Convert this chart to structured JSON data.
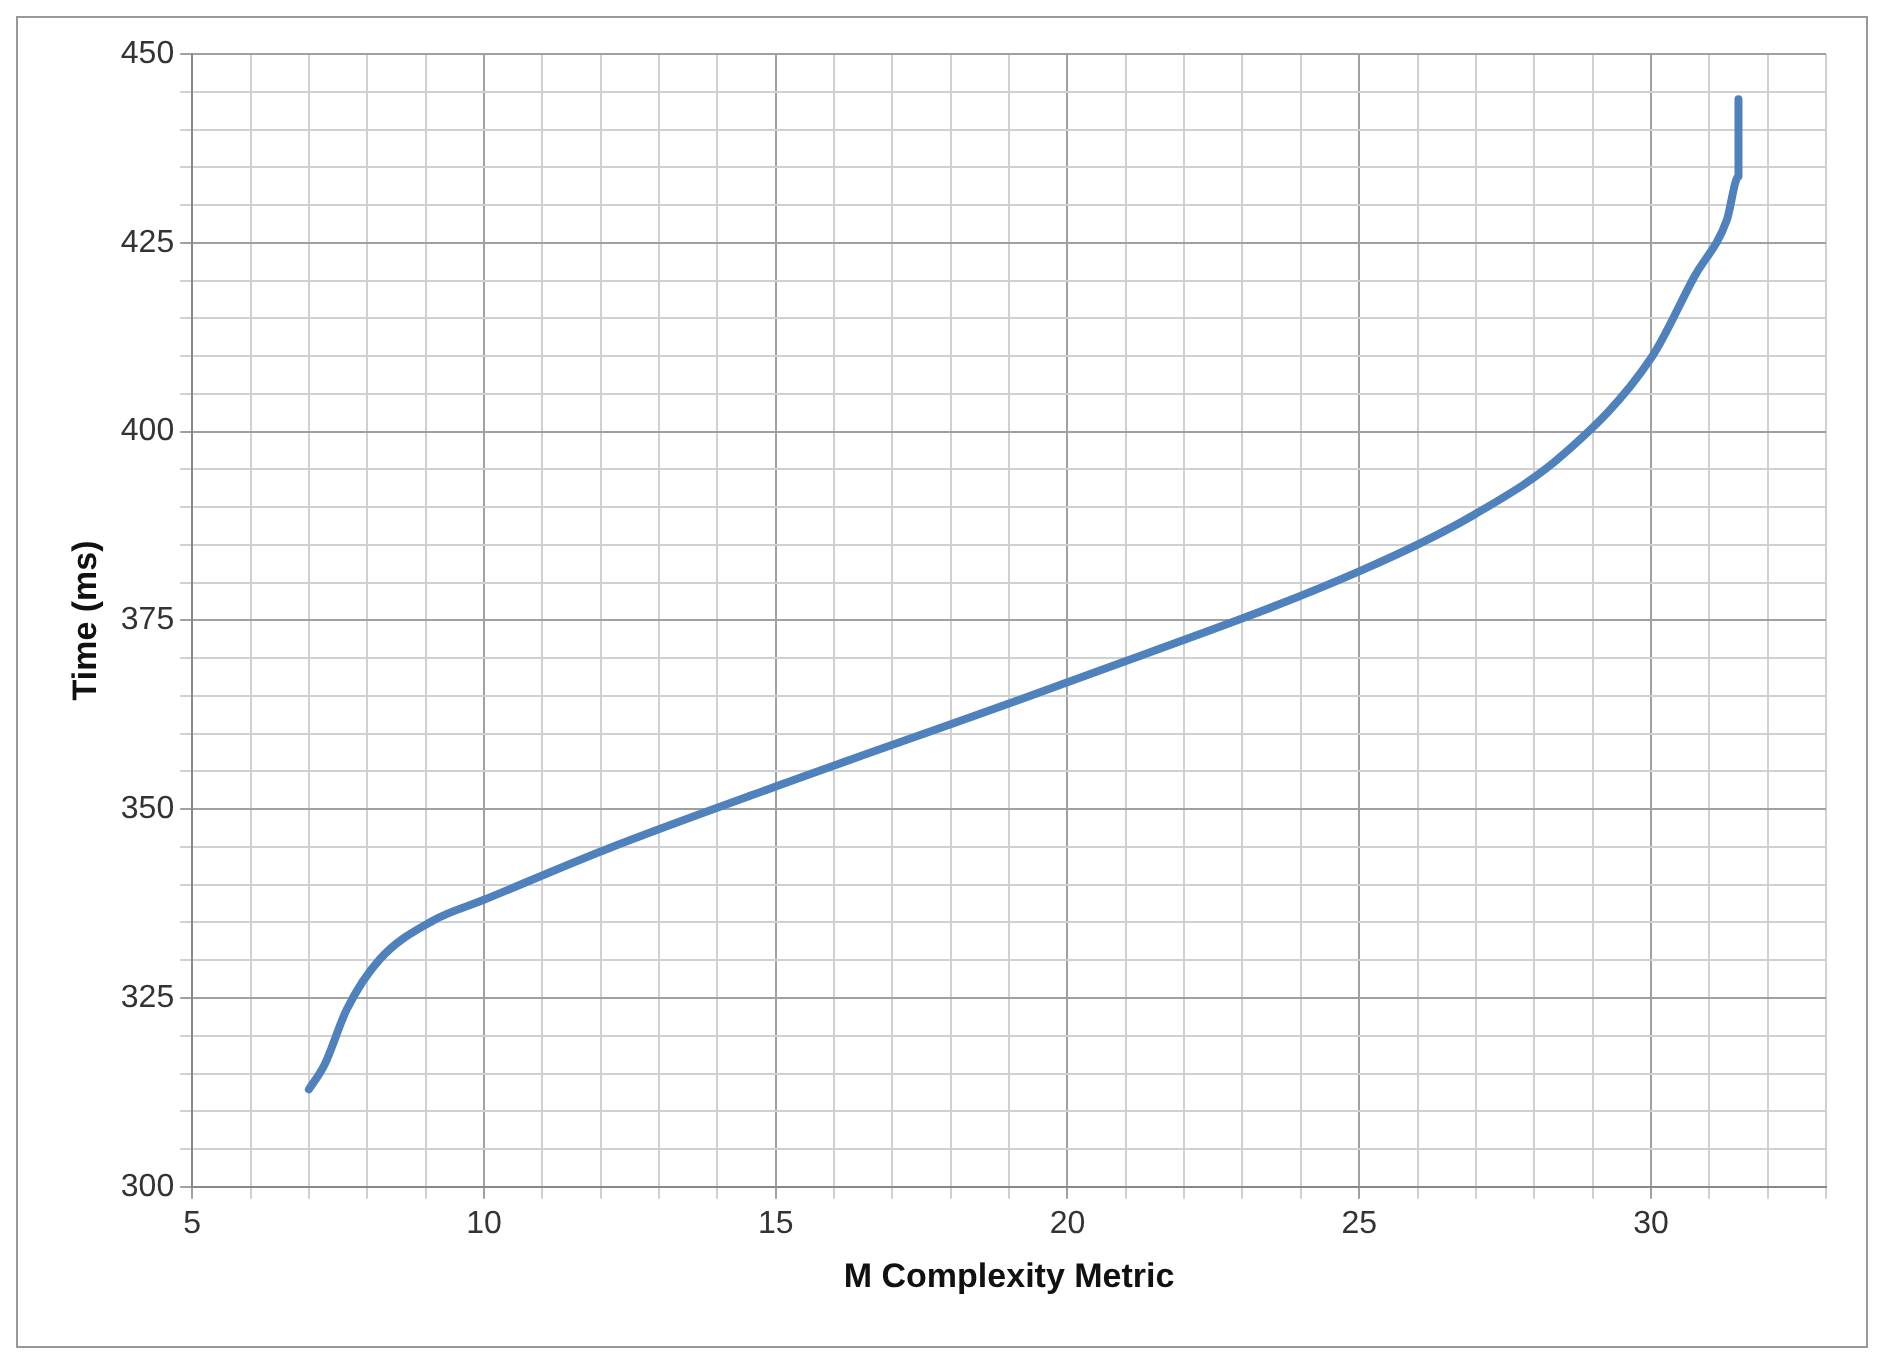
{
  "chart_data": {
    "type": "line",
    "xlabel": "M Complexity Metric",
    "ylabel": "Time (ms)",
    "x": [
      7.0,
      7.27,
      7.65,
      8.2,
      9.14,
      10,
      12.1,
      15,
      20,
      25,
      26.97,
      28.5,
      30,
      30.75,
      31.3,
      31.5,
      31.5
    ],
    "series": [
      {
        "color": "#4f81bd",
        "values": [
          312.9,
          316.2,
          323.5,
          330,
          335.3,
          338,
          344.7,
          353,
          366.8,
          381.5,
          389,
          397,
          409.7,
          420.6,
          428,
          433.8,
          444
        ]
      }
    ],
    "xlim": [
      5,
      33
    ],
    "ylim": [
      300,
      450
    ],
    "xticks": [
      5,
      {
        "value": 6,
        "label": null
      },
      {
        "value": 7,
        "label": null
      },
      {
        "value": 8,
        "label": null
      },
      {
        "value": 9,
        "label": null
      },
      10,
      {
        "value": 11,
        "label": null
      },
      {
        "value": 12,
        "label": null
      },
      {
        "value": 13,
        "label": null
      },
      {
        "value": 14,
        "label": null
      },
      15,
      {
        "value": 16,
        "label": null
      },
      {
        "value": 17,
        "label": null
      },
      {
        "value": 18,
        "label": null
      },
      {
        "value": 19,
        "label": null
      },
      20,
      {
        "value": 21,
        "label": null
      },
      {
        "value": 22,
        "label": null
      },
      {
        "value": 23,
        "label": null
      },
      {
        "value": 24,
        "label": null
      },
      25,
      {
        "value": 26,
        "label": null
      },
      {
        "value": 27,
        "label": null
      },
      {
        "value": 28,
        "label": null
      },
      {
        "value": 29,
        "label": null
      },
      30,
      {
        "value": 31,
        "label": null
      },
      {
        "value": 32,
        "label": null
      },
      {
        "value": 33,
        "label": null
      }
    ],
    "yticks": [
      300,
      {
        "value": 305,
        "label": null
      },
      {
        "value": 310,
        "label": null
      },
      {
        "value": 315,
        "label": null
      },
      {
        "value": 320,
        "label": null
      },
      325,
      {
        "value": 330,
        "label": null
      },
      {
        "value": 335,
        "label": null
      },
      {
        "value": 340,
        "label": null
      },
      {
        "value": 345,
        "label": null
      },
      350,
      {
        "value": 355,
        "label": null
      },
      {
        "value": 360,
        "label": null
      },
      {
        "value": 365,
        "label": null
      },
      {
        "value": 370,
        "label": null
      },
      375,
      {
        "value": 380,
        "label": null
      },
      {
        "value": 385,
        "label": null
      },
      {
        "value": 390,
        "label": null
      },
      {
        "value": 395,
        "label": null
      },
      400,
      {
        "value": 405,
        "label": null
      },
      {
        "value": 410,
        "label": null
      },
      {
        "value": 415,
        "label": null
      },
      {
        "value": 420,
        "label": null
      },
      425,
      {
        "value": 430,
        "label": null
      },
      {
        "value": 435,
        "label": null
      },
      {
        "value": 440,
        "label": null
      },
      {
        "value": 445,
        "label": null
      },
      450
    ],
    "grid": true,
    "marker": "none",
    "line_style": "solid"
  }
}
